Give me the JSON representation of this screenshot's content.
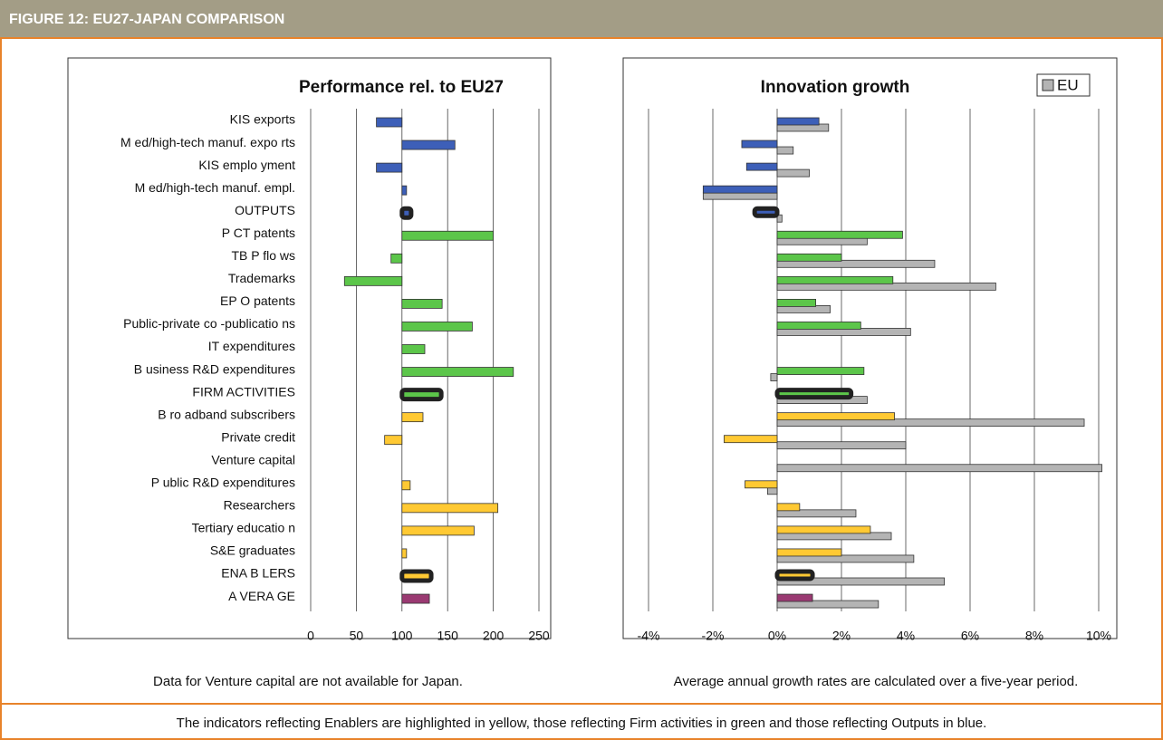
{
  "header": {
    "title": "FIGURE 12: EU27-JAPAN COMPARISON"
  },
  "chart_data": [
    {
      "type": "bar",
      "orientation": "horizontal",
      "title": "Performance rel. to EU27",
      "categories": [
        "KIS exports",
        "M ed/high-tech manuf. expo rts",
        "KIS emplo yment",
        "M ed/high-tech manuf. empl.",
        "OUTPUTS",
        "P CT patents",
        "TB P flo ws",
        "Trademarks",
        "EP O patents",
        "Public-private co -publicatio ns",
        "IT expenditures",
        "B usiness R&D expenditures",
        "FIRM ACTIVITIES",
        "B ro adband subscribers",
        "Private credit",
        "Venture capital",
        "P ublic R&D expenditures",
        "Researchers",
        "Tertiary educatio n",
        "S&E graduates",
        "ENA B LERS",
        "A VERA GE"
      ],
      "values": [
        72,
        158,
        72,
        105,
        110,
        200,
        88,
        37,
        144,
        177,
        125,
        222,
        143,
        123,
        81,
        null,
        109,
        205,
        179,
        105,
        132,
        130
      ],
      "colors": [
        "#3d5fb8",
        "#3d5fb8",
        "#3d5fb8",
        "#3d5fb8",
        "#3d5fb8",
        "#5cc64a",
        "#5cc64a",
        "#5cc64a",
        "#5cc64a",
        "#5cc64a",
        "#5cc64a",
        "#5cc64a",
        "#5cc64a",
        "#ffc933",
        "#ffc933",
        "#ffc933",
        "#ffc933",
        "#ffc933",
        "#ffc933",
        "#ffc933",
        "#ffc933",
        "#9a3a72"
      ],
      "emphasized": [
        4,
        12,
        20
      ],
      "baseline": 100,
      "xlim": [
        0,
        250
      ],
      "xticks": [
        0,
        50,
        100,
        150,
        200,
        250
      ],
      "grid": true,
      "note": "Data for Venture capital are not available for Japan."
    },
    {
      "type": "bar",
      "orientation": "horizontal",
      "title": "Innovation growth",
      "series": [
        {
          "values": [
            1.3,
            -1.1,
            -0.95,
            -2.3,
            -0.7,
            3.9,
            2.0,
            3.6,
            1.2,
            2.6,
            null,
            2.7,
            2.3,
            3.65,
            -1.65,
            null,
            -1.0,
            0.7,
            2.9,
            2.0,
            1.1,
            1.1
          ],
          "colors": [
            "#3d5fb8",
            "#3d5fb8",
            "#3d5fb8",
            "#3d5fb8",
            "#3d5fb8",
            "#5cc64a",
            "#5cc64a",
            "#5cc64a",
            "#5cc64a",
            "#5cc64a",
            "#5cc64a",
            "#5cc64a",
            "#5cc64a",
            "#ffc933",
            "#ffc933",
            "#ffc933",
            "#ffc933",
            "#ffc933",
            "#ffc933",
            "#ffc933",
            "#ffc933",
            "#9a3a72"
          ]
        },
        {
          "name": "EU",
          "color": "#b4b4b4",
          "values": [
            1.6,
            0.5,
            1.0,
            -2.3,
            0.15,
            2.8,
            4.9,
            6.8,
            1.65,
            4.15,
            null,
            -0.2,
            2.8,
            9.55,
            4.0,
            10.1,
            -0.3,
            2.45,
            3.55,
            4.25,
            5.2,
            3.15
          ]
        }
      ],
      "emphasized": [
        4,
        12,
        20
      ],
      "xlim": [
        -4,
        10
      ],
      "xticks": [
        {
          "value": -4,
          "label": "-4%"
        },
        {
          "value": -2,
          "label": "-2%"
        },
        {
          "value": 0,
          "label": "0%"
        },
        {
          "value": 2,
          "label": "2%"
        },
        {
          "value": 4,
          "label": "4%"
        },
        {
          "value": 6,
          "label": "6%"
        },
        {
          "value": 8,
          "label": "8%"
        },
        {
          "value": 10,
          "label": "10%"
        }
      ],
      "grid": true,
      "legend": "upper right",
      "note": "Average annual growth rates are calculated over a five-year period."
    }
  ],
  "footnote": "The indicators reflecting Enablers are highlighted in yellow, those reflecting Firm activities in green and those reflecting Outputs in blue."
}
